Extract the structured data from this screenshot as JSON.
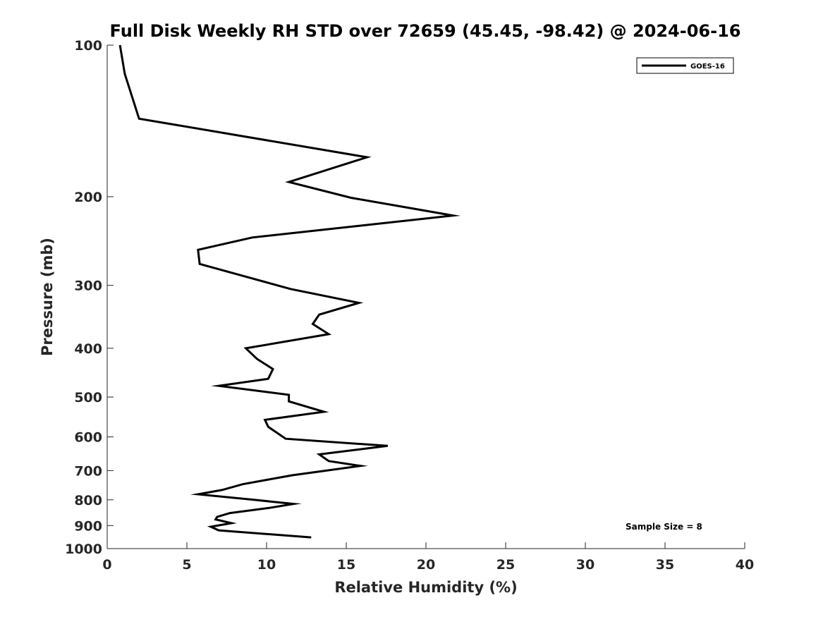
{
  "chart_data": {
    "type": "line",
    "title": "Full Disk Weekly RH STD over 72659 (45.45, -98.42) @ 2024-06-16",
    "xlabel": "Relative Humidity (%)",
    "ylabel": "Pressure (mb)",
    "xlim": [
      0,
      40
    ],
    "ylim": [
      100,
      1000
    ],
    "y_scale": "log",
    "y_reversed": true,
    "x_ticks": [
      0,
      5,
      10,
      15,
      20,
      25,
      30,
      35,
      40
    ],
    "y_ticks": [
      100,
      200,
      300,
      400,
      500,
      600,
      700,
      800,
      900,
      1000
    ],
    "grid": false,
    "legend": "top-right",
    "annotation": "Sample Size = 8",
    "series": [
      {
        "name": "GOES-16",
        "color": "#000000",
        "x": [
          0.8,
          1.1,
          2.0,
          16.3,
          11.4,
          15.3,
          21.7,
          9.1,
          5.7,
          5.8,
          11.5,
          15.8,
          13.3,
          12.9,
          13.9,
          8.7,
          9.4,
          10.4,
          10.1,
          7.0,
          11.4,
          11.4,
          13.6,
          9.9,
          10.1,
          11.2,
          17.6,
          13.3,
          13.9,
          15.9,
          11.6,
          8.5,
          7.2,
          5.7,
          9.2,
          11.7,
          10.2,
          7.7,
          6.9,
          6.8,
          7.8,
          6.5,
          7.0,
          12.8
        ],
        "y": [
          100,
          114,
          140,
          167,
          187,
          201,
          218,
          241,
          255,
          272,
          305,
          325,
          343,
          358,
          375,
          400,
          420,
          440,
          460,
          475,
          495,
          510,
          535,
          555,
          573,
          605,
          625,
          650,
          670,
          685,
          715,
          745,
          765,
          780,
          800,
          815,
          830,
          850,
          865,
          875,
          890,
          905,
          920,
          950
        ]
      }
    ]
  }
}
